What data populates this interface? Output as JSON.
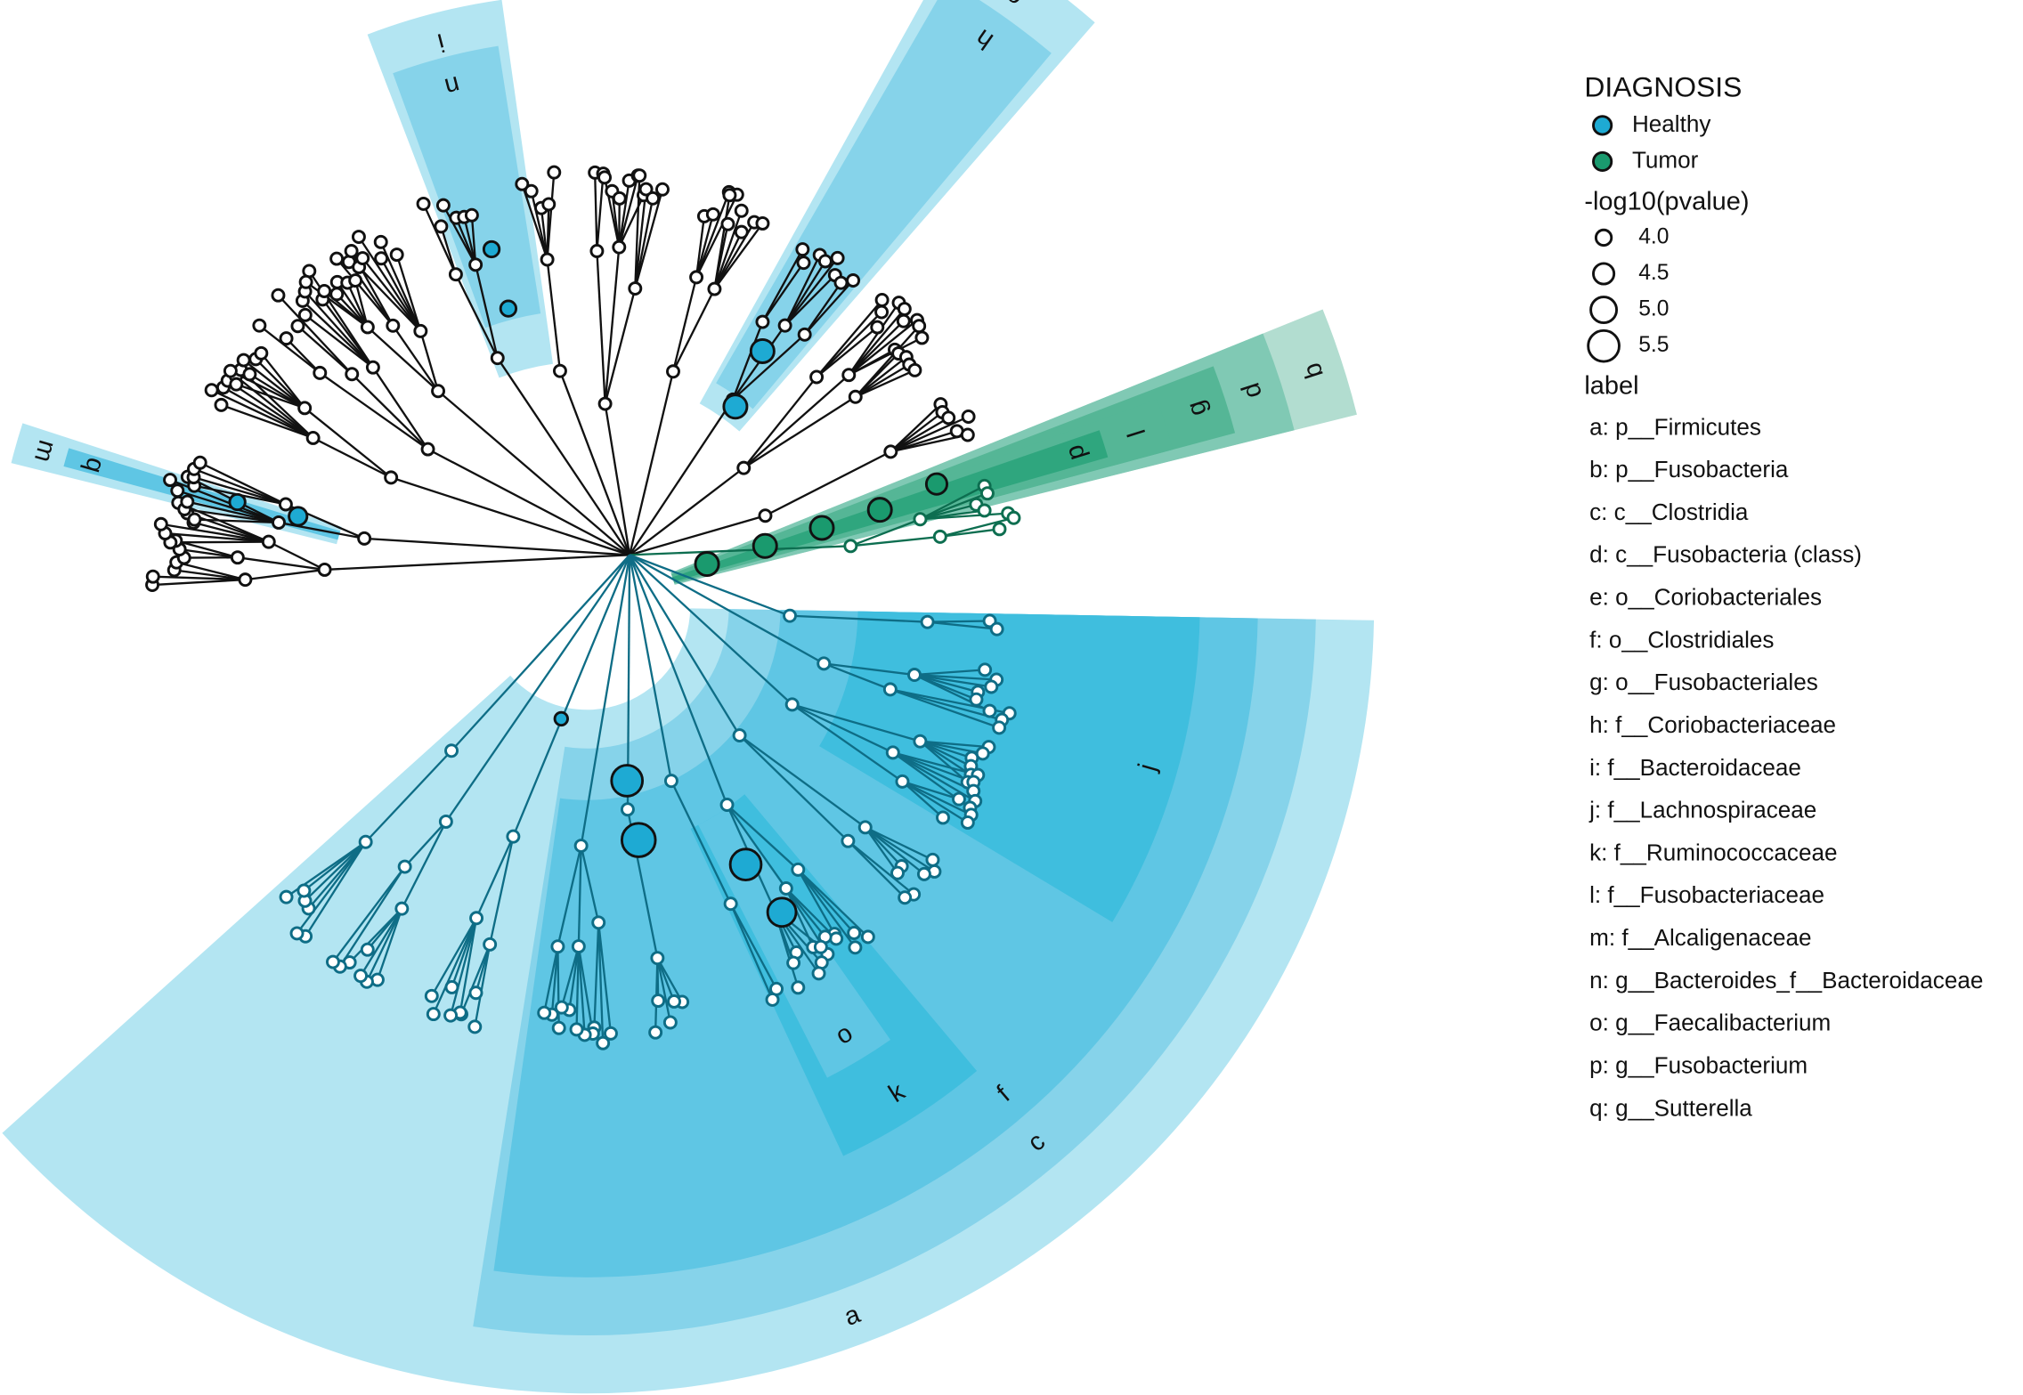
{
  "legend": {
    "diagnosis": {
      "title": "DIAGNOSIS",
      "items": [
        {
          "name": "Healthy",
          "color": "#1eaad3"
        },
        {
          "name": "Tumor",
          "color": "#1a9a6e"
        }
      ]
    },
    "pvalue": {
      "title": "-log10(pvalue)",
      "sizes": [
        {
          "value": 4.0,
          "label": "4.0"
        },
        {
          "value": 4.5,
          "label": "4.5"
        },
        {
          "value": 5.0,
          "label": "5.0"
        },
        {
          "value": 5.5,
          "label": "5.5"
        }
      ]
    },
    "label": {
      "title": "label",
      "items": [
        "a: p__Firmicutes",
        "b: p__Fusobacteria",
        "c: c__Clostridia",
        "d: c__Fusobacteria (class)",
        "e: o__Coriobacteriales",
        "f: o__Clostridiales",
        "g: o__Fusobacteriales",
        "h: f__Coriobacteriaceae",
        "i: f__Bacteroidaceae",
        "j: f__Lachnospiraceae",
        "k: f__Ruminococcaceae",
        "l: f__Fusobacteriaceae",
        "m: f__Alcaligenaceae",
        "n: g__Bacteroides_f__Bacteroidaceae",
        "o: g__Faecalibacterium",
        "p: g__Fusobacterium",
        "q: g__Sutterella"
      ]
    }
  },
  "clades": [
    "a",
    "c",
    "f",
    "j",
    "k",
    "o",
    "b",
    "d",
    "g",
    "l",
    "p",
    "e",
    "h",
    "i",
    "n",
    "m",
    "q"
  ]
}
